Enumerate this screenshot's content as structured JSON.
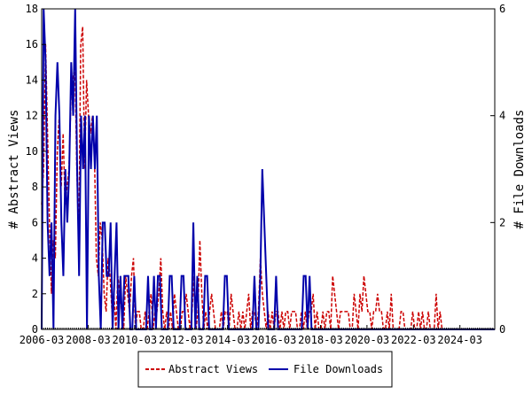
{
  "chart_data": {
    "type": "line",
    "xlabel": "",
    "ylabel_left": "# Abstract Views",
    "ylabel_right": "# File Downloads",
    "ylim_left": [
      0,
      18
    ],
    "ylim_right": [
      0,
      6
    ],
    "yticks_left": [
      "0",
      "2",
      "4",
      "6",
      "8",
      "10",
      "12",
      "14",
      "16",
      "18"
    ],
    "yticks_right": [
      "0",
      "2",
      "4",
      "6"
    ],
    "xticks": [
      "2006-03",
      "2008-03",
      "2010-03",
      "2012-03",
      "2014-03",
      "2016-03",
      "2018-03",
      "2020-03",
      "2022-03",
      "2024-03"
    ],
    "x_start": "2006-03",
    "x_end": "2025-09",
    "grid": false,
    "legend_position": "bottom-center",
    "series": [
      {
        "name": "Abstract Views",
        "axis": "left",
        "color": "#cc0000",
        "style": "dashed",
        "values": [
          7,
          9,
          16,
          11,
          6,
          2,
          5,
          4,
          10,
          12,
          8,
          11,
          7,
          8,
          9,
          13,
          14,
          15,
          9,
          5,
          16,
          17,
          9,
          14,
          12,
          11,
          12,
          10,
          4,
          3,
          6,
          5,
          2,
          1,
          4,
          3,
          1,
          2,
          0,
          3,
          2,
          1,
          0,
          3,
          2,
          1,
          3,
          4,
          0,
          1,
          1,
          0,
          0,
          1,
          0,
          1,
          2,
          0,
          1,
          1,
          2,
          4,
          1,
          0,
          1,
          0,
          1,
          0,
          2,
          1,
          0,
          0,
          1,
          1,
          2,
          1,
          0,
          1,
          3,
          0,
          1,
          5,
          2,
          0,
          1,
          0,
          1,
          2,
          1,
          0,
          0,
          0,
          1,
          0,
          1,
          1,
          0,
          2,
          1,
          0,
          0,
          1,
          0,
          1,
          0,
          1,
          2,
          0,
          1,
          1,
          0,
          1,
          4,
          2,
          1,
          0,
          1,
          0,
          1,
          0,
          1,
          1,
          0,
          1,
          0,
          1,
          1,
          0,
          1,
          1,
          1,
          0,
          0,
          1,
          0,
          1,
          0,
          1,
          1,
          2,
          0,
          1,
          0,
          0,
          1,
          0,
          1,
          1,
          0,
          3,
          2,
          1,
          0,
          1,
          1,
          1,
          1,
          1,
          0,
          0,
          2,
          1,
          0,
          2,
          1,
          3,
          2,
          1,
          1,
          0,
          1,
          1,
          2,
          1,
          1,
          0,
          0,
          1,
          0,
          2,
          0,
          0,
          0,
          0,
          1,
          1,
          0,
          0,
          0,
          0,
          1,
          0,
          0,
          1,
          0,
          1,
          0,
          0,
          1,
          0,
          0,
          0,
          2,
          0,
          1,
          0,
          0,
          0,
          0,
          0,
          0,
          0,
          0,
          0,
          0,
          0,
          0,
          0,
          0,
          0,
          0,
          0,
          0,
          0,
          0,
          0,
          0,
          0,
          0,
          0,
          0,
          0,
          0
        ]
      },
      {
        "name": "File Downloads",
        "axis": "right",
        "color": "#0000aa",
        "style": "solid",
        "values": [
          0,
          6,
          5,
          2,
          1,
          2,
          0,
          4,
          5,
          4,
          2,
          1,
          3,
          2,
          3,
          5,
          4,
          6,
          3,
          1,
          4,
          3,
          4,
          0,
          4,
          3,
          4,
          3,
          4,
          1,
          0,
          2,
          2,
          1,
          1,
          2,
          0,
          1,
          2,
          0,
          1,
          0,
          1,
          1,
          1,
          0,
          0,
          1,
          0,
          0,
          0,
          0,
          0,
          0,
          1,
          0,
          0,
          1,
          0,
          1,
          1,
          0,
          0,
          0,
          0,
          1,
          1,
          0,
          0,
          0,
          0,
          1,
          1,
          0,
          0,
          0,
          0,
          2,
          0,
          1,
          0,
          0,
          0,
          1,
          1,
          0,
          0,
          0,
          0,
          0,
          0,
          0,
          0,
          1,
          1,
          0,
          0,
          0,
          0,
          0,
          0,
          0,
          0,
          0,
          0,
          0,
          0,
          0,
          1,
          0,
          0,
          1,
          3,
          2,
          1,
          0,
          0,
          0,
          0,
          1,
          0,
          0,
          0,
          0,
          0,
          0,
          0,
          0,
          0,
          0,
          0,
          0,
          0,
          1,
          1,
          0,
          1,
          0,
          0,
          0,
          0,
          0,
          0,
          0,
          0,
          0,
          0,
          0,
          0,
          0,
          0,
          0,
          0,
          0,
          0,
          0,
          0,
          0,
          0,
          0,
          0,
          0,
          0,
          0,
          0,
          0,
          0,
          0,
          0,
          0,
          0,
          0,
          0,
          0,
          0,
          0,
          0,
          0,
          0,
          0,
          0,
          0,
          0,
          0,
          0,
          0,
          0,
          0,
          0,
          0,
          0,
          0,
          0,
          0,
          0,
          0,
          0,
          0,
          0,
          0,
          0,
          0,
          0,
          0,
          0,
          0,
          0,
          0,
          0,
          0,
          0,
          0,
          0,
          0,
          0,
          0,
          0,
          0,
          0,
          0,
          0,
          0,
          0,
          0,
          0,
          0,
          0,
          0,
          0,
          0,
          0
        ]
      }
    ]
  }
}
